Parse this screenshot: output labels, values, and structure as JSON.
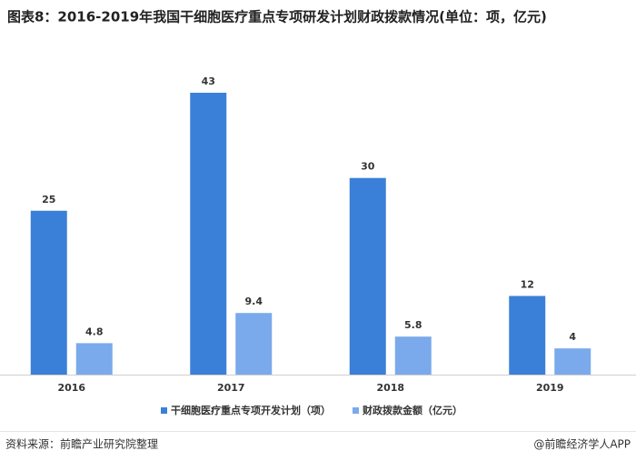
{
  "chart_data": {
    "type": "bar",
    "title": "图表8：2016-2019年我国干细胞医疗重点专项研发计划财政拨款情况(单位：项，亿元)",
    "categories": [
      "2016",
      "2017",
      "2018",
      "2019"
    ],
    "series": [
      {
        "name": "干细胞医疗重点专项开发计划（项）",
        "color": "#3b80d8",
        "values": [
          25,
          43,
          30,
          12
        ]
      },
      {
        "name": "财政拨款金额（亿元）",
        "color": "#7aaaeb",
        "values": [
          4.8,
          9.4,
          5.8,
          4
        ]
      }
    ],
    "source": "资料来源：前瞻产业研究院整理",
    "watermark": "@前瞻经济学人APP"
  }
}
